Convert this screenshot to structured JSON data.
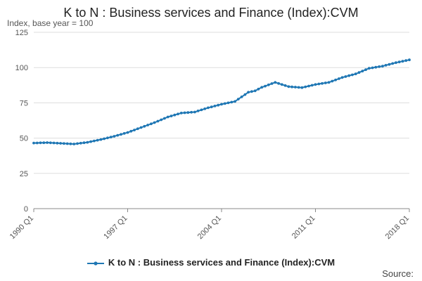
{
  "chart_data": {
    "type": "line",
    "title": "K to N : Business services and Finance (Index):CVM",
    "ylabel": "Index, base year = 100",
    "xlabel": "",
    "ylim": [
      0,
      125
    ],
    "yticks": [
      "0",
      "25",
      "50",
      "75",
      "100",
      "125"
    ],
    "xticks": [
      "1990 Q1",
      "1997 Q1",
      "2004 Q1",
      "2011 Q1",
      "2018 Q1"
    ],
    "grid": true,
    "legend_position": "bottom",
    "series": [
      {
        "name": "K to N : Business services and Finance (Index):CVM",
        "color": "#1f77b4",
        "x": [
          "1990 Q1",
          "1991 Q1",
          "1992 Q1",
          "1993 Q1",
          "1994 Q1",
          "1995 Q1",
          "1996 Q1",
          "1997 Q1",
          "1998 Q1",
          "1999 Q1",
          "2000 Q1",
          "2001 Q1",
          "2002 Q1",
          "2003 Q1",
          "2004 Q1",
          "2005 Q1",
          "2006 Q1",
          "2006 Q3",
          "2007 Q1",
          "2008 Q1",
          "2009 Q1",
          "2010 Q1",
          "2011 Q1",
          "2012 Q1",
          "2013 Q1",
          "2014 Q1",
          "2015 Q1",
          "2016 Q1",
          "2017 Q1",
          "2018 Q1"
        ],
        "values": [
          46.5,
          46.8,
          46.3,
          45.8,
          47.0,
          49.0,
          51.3,
          54.0,
          57.5,
          61.0,
          65.0,
          67.8,
          68.5,
          71.5,
          74.0,
          76.0,
          82.5,
          83.5,
          86.0,
          89.5,
          86.5,
          85.8,
          88.0,
          89.5,
          93.0,
          95.5,
          99.5,
          101.0,
          103.5,
          105.5
        ]
      }
    ]
  },
  "source_label": "Source:"
}
